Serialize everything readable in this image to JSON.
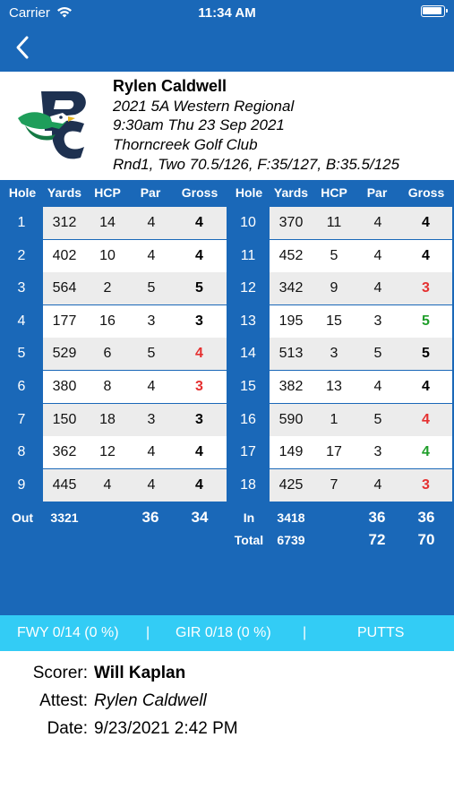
{
  "status_bar": {
    "carrier": "Carrier",
    "time": "11:34 AM"
  },
  "player": {
    "name": "Rylen Caldwell",
    "event": "2021 5A Western Regional",
    "datetime": "9:30am Thu 23 Sep 2021",
    "course": "Thorncreek Golf Club",
    "round_info": "Rnd1, Two 70.5/126, F:35/127, B:35.5/125"
  },
  "columns": [
    "Hole",
    "Yards",
    "HCP",
    "Par",
    "Gross"
  ],
  "front": [
    {
      "hole": "1",
      "yards": "312",
      "hcp": "14",
      "par": "4",
      "gross": "4",
      "color": "#000000"
    },
    {
      "hole": "2",
      "yards": "402",
      "hcp": "10",
      "par": "4",
      "gross": "4",
      "color": "#000000"
    },
    {
      "hole": "3",
      "yards": "564",
      "hcp": "2",
      "par": "5",
      "gross": "5",
      "color": "#000000"
    },
    {
      "hole": "4",
      "yards": "177",
      "hcp": "16",
      "par": "3",
      "gross": "3",
      "color": "#000000"
    },
    {
      "hole": "5",
      "yards": "529",
      "hcp": "6",
      "par": "5",
      "gross": "4",
      "color": "#e53030"
    },
    {
      "hole": "6",
      "yards": "380",
      "hcp": "8",
      "par": "4",
      "gross": "3",
      "color": "#e53030"
    },
    {
      "hole": "7",
      "yards": "150",
      "hcp": "18",
      "par": "3",
      "gross": "3",
      "color": "#000000"
    },
    {
      "hole": "8",
      "yards": "362",
      "hcp": "12",
      "par": "4",
      "gross": "4",
      "color": "#000000"
    },
    {
      "hole": "9",
      "yards": "445",
      "hcp": "4",
      "par": "4",
      "gross": "4",
      "color": "#000000"
    }
  ],
  "back": [
    {
      "hole": "10",
      "yards": "370",
      "hcp": "11",
      "par": "4",
      "gross": "4",
      "color": "#000000"
    },
    {
      "hole": "11",
      "yards": "452",
      "hcp": "5",
      "par": "4",
      "gross": "4",
      "color": "#000000"
    },
    {
      "hole": "12",
      "yards": "342",
      "hcp": "9",
      "par": "4",
      "gross": "3",
      "color": "#e53030"
    },
    {
      "hole": "13",
      "yards": "195",
      "hcp": "15",
      "par": "3",
      "gross": "5",
      "color": "#1f9e2a"
    },
    {
      "hole": "14",
      "yards": "513",
      "hcp": "3",
      "par": "5",
      "gross": "5",
      "color": "#000000"
    },
    {
      "hole": "15",
      "yards": "382",
      "hcp": "13",
      "par": "4",
      "gross": "4",
      "color": "#000000"
    },
    {
      "hole": "16",
      "yards": "590",
      "hcp": "1",
      "par": "5",
      "gross": "4",
      "color": "#e53030"
    },
    {
      "hole": "17",
      "yards": "149",
      "hcp": "17",
      "par": "3",
      "gross": "4",
      "color": "#1f9e2a"
    },
    {
      "hole": "18",
      "yards": "425",
      "hcp": "7",
      "par": "4",
      "gross": "3",
      "color": "#e53030"
    }
  ],
  "totals": {
    "out_label": "Out",
    "out_yards": "3321",
    "out_par": "36",
    "out_gross": "34",
    "in_label": "In",
    "in_yards": "3418",
    "in_par": "36",
    "in_gross": "36",
    "total_label": "Total",
    "total_yards": "6739",
    "total_par": "72",
    "total_gross": "70"
  },
  "stats": {
    "fwy": "FWY 0/14 (0 %)",
    "sep1": "|",
    "gir": "GIR 0/18 (0 %)",
    "sep2": "|",
    "putts": "PUTTS"
  },
  "footer": {
    "scorer_label": "Scorer:",
    "scorer": "Will Kaplan",
    "attest_label": "Attest:",
    "attest": "Rylen Caldwell",
    "date_label": "Date:",
    "date": "9/23/2021 2:42 PM"
  },
  "colors": {
    "header_blue": "#1a68b8",
    "stats_bar": "#33ccf5",
    "row_light": "#ececec",
    "birdie": "#e53030",
    "bogey": "#1f9e2a"
  }
}
